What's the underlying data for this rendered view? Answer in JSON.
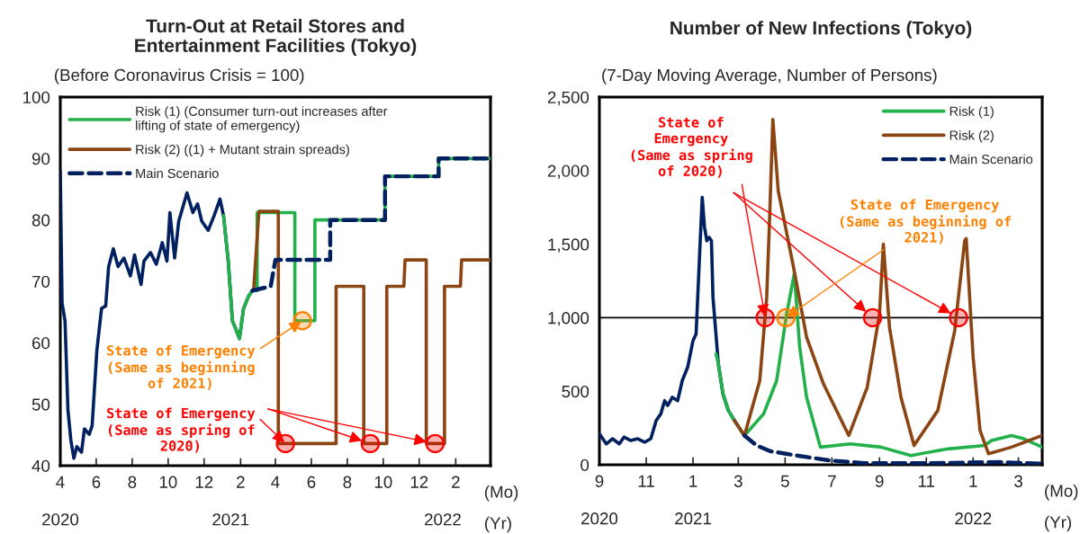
{
  "chart_data": [
    {
      "type": "line",
      "title": "Turn-Out at Retail Stores and\nEntertainment Facilities (Tokyo)",
      "subtitle": "(Before Coronavirus Crisis = 100)",
      "xlabel": "(Mo)",
      "x2label": "(Yr)",
      "xlim": [
        "2020-04-01",
        "2022-04-01"
      ],
      "xticks": [
        {
          "value": "2020-04-01",
          "label": "4"
        },
        {
          "value": "2020-06-01",
          "label": "6"
        },
        {
          "value": "2020-08-01",
          "label": "8"
        },
        {
          "value": "2020-10-01",
          "label": "10"
        },
        {
          "value": "2020-12-01",
          "label": "12"
        },
        {
          "value": "2021-02-01",
          "label": "2"
        },
        {
          "value": "2021-04-01",
          "label": "4"
        },
        {
          "value": "2021-06-01",
          "label": "6"
        },
        {
          "value": "2021-08-01",
          "label": "8"
        },
        {
          "value": "2021-10-01",
          "label": "10"
        },
        {
          "value": "2021-12-01",
          "label": "12"
        },
        {
          "value": "2022-02-01",
          "label": "2"
        }
      ],
      "x2lim": [
        "2020-04-01",
        "2022-04-01"
      ],
      "x2ticks": [
        {
          "value": "2020-04-01",
          "label": "2020"
        },
        {
          "value": "2021-01-15",
          "label": "2021"
        },
        {
          "value": "2022-01-10",
          "label": "2022"
        }
      ],
      "ylim": [
        40,
        100
      ],
      "yticks": [
        40,
        50,
        60,
        70,
        80,
        90,
        100
      ],
      "legend": "top left",
      "series": [
        {
          "type": "line",
          "color": "#002060",
          "line_style": "solid",
          "x": [
            "2020-04-01",
            "2020-04-04",
            "2020-04-09",
            "2020-04-14",
            "2020-04-19",
            "2020-04-24",
            "2020-04-29",
            "2020-05-07",
            "2020-05-12",
            "2020-05-20",
            "2020-05-25",
            "2020-06-02",
            "2020-06-10",
            "2020-06-17",
            "2020-06-22",
            "2020-06-30",
            "2020-07-08",
            "2020-07-18",
            "2020-07-29",
            "2020-08-05",
            "2020-08-16",
            "2020-08-21",
            "2020-09-01",
            "2020-09-11",
            "2020-09-21",
            "2020-09-29",
            "2020-10-04",
            "2020-10-12",
            "2020-10-19",
            "2020-11-02",
            "2020-11-12",
            "2020-11-20",
            "2020-11-27",
            "2020-12-08",
            "2020-12-18",
            "2020-12-28",
            "2021-01-03",
            "2021-01-11",
            "2021-01-18",
            "2021-01-24",
            "2021-01-30",
            "2021-02-06",
            "2021-02-14",
            "2021-02-21"
          ],
          "values": [
            88,
            66.5,
            63.6,
            49,
            44.1,
            41.2,
            43.1,
            42.2,
            46,
            45.1,
            46.5,
            58.7,
            65.6,
            66,
            72.4,
            75.3,
            72.4,
            73.8,
            70.9,
            74.3,
            69.5,
            73.3,
            74.7,
            72.8,
            76.3,
            73.3,
            81.2,
            73.8,
            79.8,
            84.4,
            81.2,
            82.6,
            79.8,
            78.3,
            80.7,
            83.4,
            80.7,
            73.3,
            63.6,
            62.2,
            60.7,
            65.6,
            67.5,
            68.5
          ]
        },
        {
          "type": "line",
          "name": "Risk (1) (Consumer turn-out increases after\nlifting of state of emergency)",
          "color": "#22b04b",
          "line_style": "solid",
          "x": [
            "2021-01-03",
            "2021-01-11",
            "2021-01-18",
            "2021-01-24",
            "2021-01-30",
            "2021-02-06",
            "2021-02-14",
            "2021-02-21",
            "2021-03-01",
            "2021-03-01",
            "2021-05-04",
            "2021-05-04",
            "2021-06-07",
            "2021-06-07",
            "2021-10-04",
            "2021-10-04",
            "2022-01-03",
            "2022-01-03",
            "2022-04-01"
          ],
          "values": [
            80.7,
            73.3,
            63.6,
            62.2,
            60.7,
            65.6,
            67.5,
            68.5,
            68.5,
            81.2,
            81.2,
            63.6,
            63.6,
            80,
            80,
            87.1,
            87.1,
            90,
            90
          ]
        },
        {
          "type": "line",
          "name": "Risk (2) ((1) + Mutant strain spreads)",
          "color": "#8b4513",
          "line_style": "solid",
          "x": [
            "2021-02-23",
            "2021-03-04",
            "2021-04-06",
            "2021-04-06",
            "2021-07-13",
            "2021-07-13",
            "2021-08-29",
            "2021-08-29",
            "2021-10-07",
            "2021-10-07",
            "2021-11-05",
            "2021-11-07",
            "2021-12-13",
            "2021-12-13",
            "2022-01-13",
            "2022-01-13",
            "2022-02-09",
            "2022-02-11",
            "2022-04-01"
          ],
          "values": [
            68.5,
            81.4,
            81.4,
            43.6,
            43.6,
            69.2,
            69.2,
            43.6,
            43.6,
            69.2,
            69.2,
            73.5,
            73.5,
            43.6,
            43.6,
            69.2,
            69.2,
            73.5,
            73.5
          ]
        },
        {
          "type": "line",
          "name": "Main Scenario",
          "color": "#002060",
          "line_style": "dashed",
          "x": [
            "2021-02-21",
            "2021-03-24",
            "2021-04-01",
            "2021-07-03",
            "2021-07-03",
            "2021-10-04",
            "2021-10-04",
            "2022-01-03",
            "2022-01-03",
            "2022-04-01"
          ],
          "values": [
            68.5,
            69.2,
            73.5,
            73.5,
            80,
            80,
            87.1,
            87.1,
            90,
            90
          ]
        },
        {
          "type": "scatter",
          "color": "#ff8000",
          "marker": "circle",
          "x": [
            "2021-05-17"
          ],
          "values": [
            63.6
          ]
        },
        {
          "type": "scatter",
          "color": "#ff0000",
          "marker": "circle",
          "x": [
            "2021-04-18",
            "2021-09-09",
            "2021-12-28"
          ],
          "values": [
            43.6,
            43.6,
            43.6
          ]
        }
      ],
      "annotations": [
        {
          "text": "State of Emergency\n(Same as beginning\nof 2021)",
          "x": "2021-05-17",
          "y": 63.6
        },
        {
          "text": "State of Emergency\n(Same as spring of\n2020)",
          "x": "2021-04-18",
          "y": 43.6
        }
      ]
    },
    {
      "type": "line",
      "title": "Number of New Infections (Tokyo)",
      "subtitle": "(7-Day Moving Average, Number of Persons)",
      "xlabel": "(Mo)",
      "x2label": "(Yr)",
      "xlim": [
        "2020-09-01",
        "2022-04-01"
      ],
      "xticks": [
        {
          "value": "2020-09-01",
          "label": "9"
        },
        {
          "value": "2020-11-01",
          "label": "11"
        },
        {
          "value": "2021-01-01",
          "label": "1"
        },
        {
          "value": "2021-03-01",
          "label": "3"
        },
        {
          "value": "2021-05-01",
          "label": "5"
        },
        {
          "value": "2021-07-01",
          "label": "7"
        },
        {
          "value": "2021-09-01",
          "label": "9"
        },
        {
          "value": "2021-11-01",
          "label": "11"
        },
        {
          "value": "2022-01-01",
          "label": "1"
        },
        {
          "value": "2022-03-01",
          "label": "3"
        }
      ],
      "x2lim": [
        "2020-09-01",
        "2022-04-01"
      ],
      "x2ticks": [
        {
          "value": "2020-09-01",
          "label": "2020"
        },
        {
          "value": "2021-01-01",
          "label": "2021"
        },
        {
          "value": "2022-01-01",
          "label": "2022"
        }
      ],
      "ylim": [
        0,
        2500
      ],
      "yticks": [
        0,
        500,
        {
          "value": 1000,
          "label": "1,000"
        },
        {
          "value": 1500,
          "label": "1,500"
        },
        {
          "value": 2000,
          "label": "2,000"
        },
        {
          "value": 2500,
          "label": "2,500"
        }
      ],
      "legend": "top right",
      "ref_lines": [
        {
          "axis": "y",
          "value": 1000,
          "color": "#000000"
        }
      ],
      "series": [
        {
          "type": "line",
          "color": "#002060",
          "line_style": "solid",
          "x": [
            "2020-09-01",
            "2020-09-10",
            "2020-09-18",
            "2020-09-27",
            "2020-10-03",
            "2020-10-12",
            "2020-10-21",
            "2020-10-30",
            "2020-11-07",
            "2020-11-14",
            "2020-11-20",
            "2020-11-25",
            "2020-11-29",
            "2020-12-05",
            "2020-12-12",
            "2020-12-18",
            "2020-12-25",
            "2021-01-01",
            "2021-01-05",
            "2021-01-10",
            "2021-01-13",
            "2021-01-16",
            "2021-01-19",
            "2021-01-22",
            "2021-01-25",
            "2021-01-27",
            "2021-02-03",
            "2021-02-09",
            "2021-02-16",
            "2021-02-24",
            "2021-03-03",
            "2021-03-09"
          ],
          "values": [
            210,
            142,
            177,
            142,
            188,
            165,
            177,
            154,
            177,
            301,
            346,
            436,
            403,
            459,
            436,
            573,
            663,
            844,
            889,
            1478,
            1818,
            1614,
            1523,
            1546,
            1523,
            1139,
            686,
            482,
            369,
            301,
            244,
            199
          ]
        },
        {
          "type": "line",
          "name": "Risk (1)",
          "color": "#22b04b",
          "line_style": "solid",
          "x": [
            "2021-01-31",
            "2021-02-03",
            "2021-02-09",
            "2021-02-16",
            "2021-02-24",
            "2021-03-03",
            "2021-03-09",
            "2021-04-03",
            "2021-04-20",
            "2021-05-03",
            "2021-05-13",
            "2021-05-20",
            "2021-05-29",
            "2021-06-16",
            "2021-07-25",
            "2021-09-03",
            "2021-10-12",
            "2021-11-29",
            "2022-01-16",
            "2022-01-25",
            "2022-02-20",
            "2022-03-08",
            "2022-04-01"
          ],
          "values": [
            754,
            686,
            482,
            369,
            301,
            244,
            199,
            346,
            573,
            1025,
            1300,
            799,
            459,
            120,
            142,
            120,
            63,
            108,
            131,
            165,
            199,
            177,
            120
          ]
        },
        {
          "type": "line",
          "name": "Risk (2)",
          "color": "#8b4513",
          "line_style": "solid",
          "x": [
            "2021-02-24",
            "2021-03-09",
            "2021-03-29",
            "2021-04-07",
            "2021-04-11",
            "2021-04-15",
            "2021-04-22",
            "2021-05-12",
            "2021-05-29",
            "2021-06-20",
            "2021-07-23",
            "2021-08-16",
            "2021-09-01",
            "2021-09-06",
            "2021-09-14",
            "2021-09-29",
            "2021-10-16",
            "2021-11-16",
            "2021-12-08",
            "2021-12-21",
            "2021-12-23",
            "2022-01-01",
            "2022-01-10",
            "2022-01-21",
            "2022-02-20",
            "2022-04-01"
          ],
          "values": [
            301,
            199,
            573,
            1139,
            1705,
            2349,
            1863,
            1342,
            867,
            550,
            199,
            527,
            1025,
            1500,
            935,
            459,
            131,
            369,
            912,
            1523,
            1538,
            731,
            233,
            75,
            120,
            199
          ]
        },
        {
          "type": "line",
          "name": "Main Scenario",
          "color": "#002060",
          "line_style": "dashed",
          "x": [
            "2021-03-09",
            "2021-03-25",
            "2021-04-12",
            "2021-05-16",
            "2021-06-29",
            "2021-08-12",
            "2021-11-07",
            "2022-02-04",
            "2022-04-01"
          ],
          "values": [
            199,
            131,
            92,
            63,
            29,
            11,
            11,
            18,
            7
          ]
        },
        {
          "type": "scatter",
          "color": "#ff0000",
          "marker": "circle",
          "x": [
            "2021-04-05",
            "2021-08-23",
            "2021-12-13"
          ],
          "values": [
            1000,
            1000,
            1000
          ]
        },
        {
          "type": "scatter",
          "color": "#ff8000",
          "marker": "circle",
          "x": [
            "2021-05-02"
          ],
          "values": [
            1000
          ]
        }
      ],
      "annotations": [
        {
          "text": "State of\nEmergency\n(Same as spring\nof 2020)",
          "x": "2021-04-05",
          "y": 1000
        },
        {
          "text": "State of Emergency\n(Same as beginning of\n2021)",
          "x": "2021-05-02",
          "y": 1000
        }
      ]
    }
  ]
}
